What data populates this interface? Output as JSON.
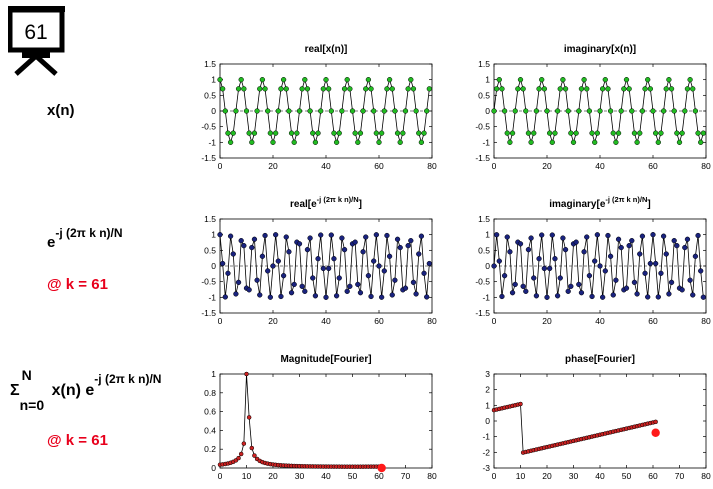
{
  "badge": {
    "value": "61"
  },
  "rows": {
    "signal_label": "x(n)",
    "basis_label": {
      "base": "e",
      "exponent": "-j (2π k n)/N",
      "at": "@ k = 61"
    },
    "sum_label": {
      "sigma": "Σ",
      "upper": "N",
      "lower": "n=0",
      "term": "x(n) e",
      "exponent": "-j (2π k n)/N",
      "at": "@ k = 61"
    }
  },
  "colors": {
    "signal_marker": "#22bb22",
    "basis_marker": "#1a237e",
    "fourier_marker": "#cc2222",
    "current_marker": "#ff1a1a",
    "at_text": "#e8001c"
  },
  "chart_data": [
    {
      "id": "real-x",
      "type": "line",
      "title": "real[x(n)]",
      "x_range": [
        0,
        80
      ],
      "ylim": [
        -1.5,
        1.5
      ],
      "xticks": [
        0,
        20,
        40,
        60,
        80
      ],
      "yticks": [
        -1.5,
        -1,
        -0.5,
        0,
        0.5,
        1,
        1.5
      ],
      "ytick_labels": [
        "-1.5",
        "-1",
        "-0.5",
        "0",
        "0.5",
        "1",
        "1.5"
      ],
      "grid": false,
      "zero_line": true,
      "series": [
        {
          "kind": "cos",
          "amplitude": 1,
          "cycles_per_n": 0.125,
          "n_start": 0,
          "n_end": 79,
          "marker": "signal"
        }
      ]
    },
    {
      "id": "imag-x",
      "type": "line",
      "title": "imaginary[x(n)]",
      "x_range": [
        0,
        80
      ],
      "ylim": [
        -1.5,
        1.5
      ],
      "xticks": [
        0,
        20,
        40,
        60,
        80
      ],
      "yticks": [
        -1.5,
        -1,
        -0.5,
        0,
        0.5,
        1,
        1.5
      ],
      "ytick_labels": [
        "-1.5",
        "-1",
        "-0.5",
        "0",
        "0.5",
        "1",
        "1.5"
      ],
      "grid": false,
      "zero_line": true,
      "series": [
        {
          "kind": "sin",
          "amplitude": 1,
          "cycles_per_n": 0.125,
          "n_start": 0,
          "n_end": 79,
          "marker": "signal"
        }
      ]
    },
    {
      "id": "real-basis",
      "type": "line",
      "title": {
        "base": "real[e",
        "exponent": "-j (2π k n)/N",
        "tail": "]"
      },
      "x_range": [
        0,
        80
      ],
      "ylim": [
        -1.5,
        1.5
      ],
      "xticks": [
        0,
        20,
        40,
        60,
        80
      ],
      "yticks": [
        -1.5,
        -1,
        -0.5,
        0,
        0.5,
        1,
        1.5
      ],
      "ytick_labels": [
        "-1.5",
        "-1",
        "-0.5",
        "0",
        "0.5",
        "1",
        "1.5"
      ],
      "grid": false,
      "zero_line": true,
      "series": [
        {
          "kind": "cos",
          "amplitude": 1,
          "cycles_per_n": 0.2375,
          "n_start": 0,
          "n_end": 79,
          "marker": "basis"
        }
      ]
    },
    {
      "id": "imag-basis",
      "type": "line",
      "title": {
        "base": "imaginary[e",
        "exponent": "-j (2π k n)/N",
        "tail": "]"
      },
      "x_range": [
        0,
        80
      ],
      "ylim": [
        -1.5,
        1.5
      ],
      "xticks": [
        0,
        20,
        40,
        60,
        80
      ],
      "yticks": [
        -1.5,
        -1,
        -0.5,
        0,
        0.5,
        1,
        1.5
      ],
      "ytick_labels": [
        "-1.5",
        "-1",
        "-0.5",
        "0",
        "0.5",
        "1",
        "1.5"
      ],
      "grid": false,
      "zero_line": true,
      "series": [
        {
          "kind": "sin",
          "amplitude": 1,
          "cycles_per_n": 0.2375,
          "n_start": 0,
          "n_end": 79,
          "marker": "basis"
        }
      ]
    },
    {
      "id": "magnitude",
      "type": "line",
      "title": "Magnitude[Fourier]",
      "x_range": [
        0,
        80
      ],
      "ylim": [
        0,
        1
      ],
      "xticks": [
        0,
        10,
        20,
        30,
        40,
        50,
        60,
        70,
        80
      ],
      "yticks": [
        0,
        0.2,
        0.4,
        0.6,
        0.8,
        1
      ],
      "ytick_labels": [
        "0",
        "0.2",
        "0.4",
        "0.6",
        "0.8",
        "1"
      ],
      "grid": false,
      "zero_line": false,
      "series": [
        {
          "kind": "dft_mag",
          "peak_k": 10,
          "N": 80,
          "k_start": 0,
          "k_end": 61,
          "marker": "fourier"
        }
      ],
      "current_point": {
        "x": 61,
        "y": 0
      }
    },
    {
      "id": "phase",
      "type": "line",
      "title": "phase[Fourier]",
      "x_range": [
        0,
        80
      ],
      "ylim": [
        -3,
        3
      ],
      "xticks": [
        0,
        10,
        20,
        30,
        40,
        50,
        60,
        70,
        80
      ],
      "yticks": [
        -3,
        -2,
        -1,
        0,
        1,
        2,
        3
      ],
      "ytick_labels": [
        "-3",
        "-2",
        "-1",
        "0",
        "1",
        "2",
        "3"
      ],
      "grid": false,
      "zero_line": false,
      "series": [
        {
          "kind": "dft_phase",
          "peak_k": 10,
          "N": 80,
          "k_start": 0,
          "k_end": 61,
          "marker": "fourier"
        }
      ],
      "current_point": {
        "x": 61,
        "y": -0.75
      }
    }
  ]
}
